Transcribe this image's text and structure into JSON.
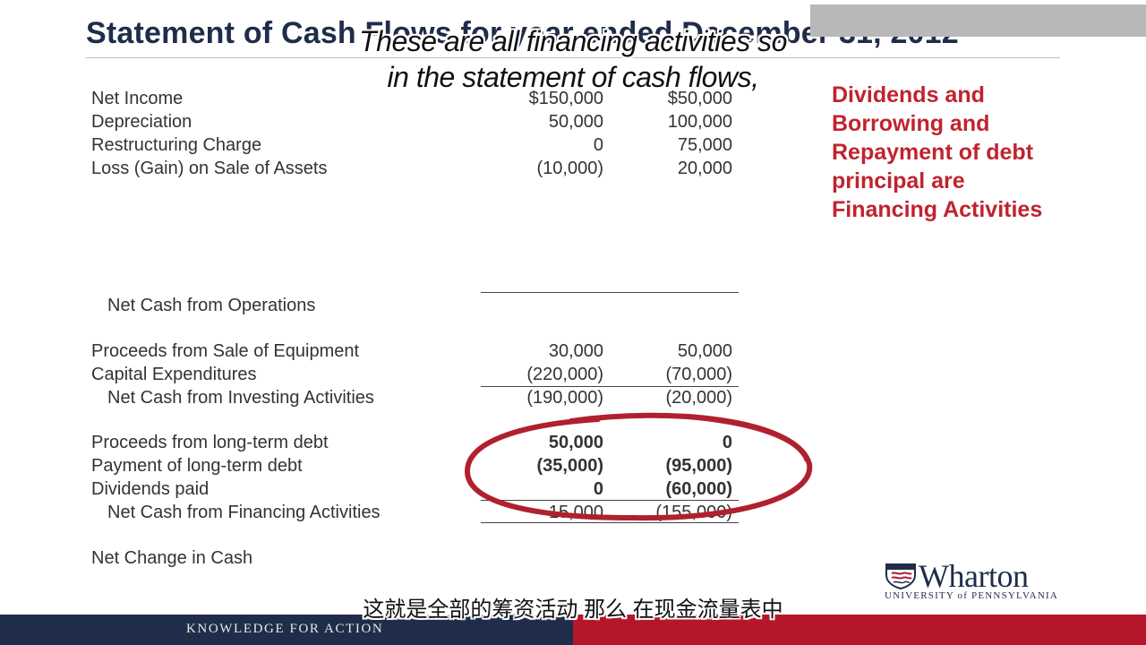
{
  "slide": {
    "title": "Statement of Cash Flows for year ended December 31, 2012",
    "subtitle_en": [
      "These are all financing activities so",
      "in the statement of cash flows,"
    ],
    "subtitle_cn": "这就是全部的筹资活动 那么 在现金流量表中",
    "callout": [
      "Dividends and",
      "Borrowing and",
      "Repayment of debt",
      "principal are",
      "Financing Activities"
    ],
    "rows": [
      {
        "label": "Net Income",
        "v1": "$150,000",
        "v2": "$50,000"
      },
      {
        "label": "Depreciation",
        "v1": "50,000",
        "v2": "100,000"
      },
      {
        "label": "Restructuring Charge",
        "v1": "0",
        "v2": "75,000"
      },
      {
        "label": "Loss (Gain) on Sale of Assets",
        "v1": "(10,000)",
        "v2": "20,000"
      },
      {
        "label": "Net Cash from Operations",
        "v1": "",
        "v2": ""
      },
      {
        "label": "Proceeds from Sale of Equipment",
        "v1": "30,000",
        "v2": "50,000"
      },
      {
        "label": "Capital Expenditures",
        "v1": "(220,000)",
        "v2": "(70,000)"
      },
      {
        "label": "Net Cash from Investing Activities",
        "v1": "(190,000)",
        "v2": "(20,000)"
      },
      {
        "label": "Proceeds from long-term debt",
        "v1": "50,000",
        "v2": "0"
      },
      {
        "label": "Payment of long-term debt",
        "v1": "(35,000)",
        "v2": "(95,000)"
      },
      {
        "label": "Dividends paid",
        "v1": "0",
        "v2": "(60,000)"
      },
      {
        "label": "Net Cash from Financing Activities",
        "v1": "15,000",
        "v2": "(155,000)"
      },
      {
        "label": "Net Change in Cash",
        "v1": "",
        "v2": ""
      }
    ],
    "footer": "KNOWLEDGE FOR ACTION",
    "logo": {
      "name": "Wharton",
      "sub": "UNIVERSITY of PENNSYLVANIA"
    },
    "colors": {
      "navy": "#1f2d4a",
      "red": "#b5172a",
      "callout_red": "#c0232f",
      "circle_red": "#b0202e"
    }
  }
}
